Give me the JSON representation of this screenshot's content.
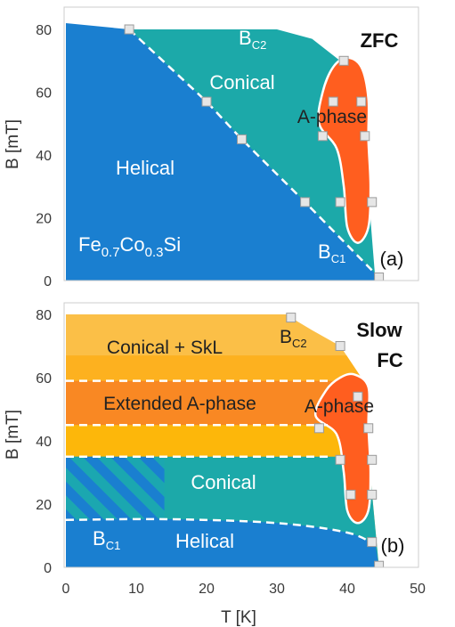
{
  "chart_data": [
    {
      "type": "phase-diagram",
      "panel_label": "(a)",
      "corner_label": "ZFC",
      "xlabel": "",
      "ylabel": "B [mT]",
      "xlim": [
        0,
        50
      ],
      "ylim": [
        0,
        80
      ],
      "y_ticks": [
        0,
        20,
        40,
        60,
        80
      ],
      "regions": [
        "Helical",
        "Conical",
        "A-phase"
      ],
      "compound_label": {
        "main": "Fe",
        "sub1": "0.7",
        "mid": "Co",
        "sub2": "0.3",
        "tail": "Si"
      },
      "boundaries": [
        {
          "name_main": "B",
          "name_sub": "C2",
          "points": [
            [
              30,
              80
            ],
            [
              35,
              77
            ],
            [
              39,
              70
            ],
            [
              42,
              56
            ],
            [
              44,
              0
            ]
          ]
        },
        {
          "name_main": "B",
          "name_sub": "C1",
          "points": [
            [
              9,
              80
            ],
            [
              20,
              57
            ],
            [
              25,
              45
            ],
            [
              34,
              25
            ],
            [
              44.5,
              1
            ]
          ]
        }
      ],
      "markers": [
        [
          9,
          80
        ],
        [
          20,
          57
        ],
        [
          25,
          45
        ],
        [
          34,
          25
        ],
        [
          44.5,
          1
        ],
        [
          39.5,
          70
        ],
        [
          38,
          57
        ],
        [
          42,
          57
        ],
        [
          36.5,
          46
        ],
        [
          42.5,
          46
        ],
        [
          39,
          25
        ],
        [
          43.5,
          25
        ]
      ],
      "a_phase_outline": [
        [
          40,
          71
        ],
        [
          42,
          68
        ],
        [
          43,
          58
        ],
        [
          43,
          45
        ],
        [
          43.3,
          30
        ],
        [
          43,
          17
        ],
        [
          41.5,
          12
        ],
        [
          40,
          17
        ],
        [
          39.5,
          30
        ],
        [
          38.5,
          42
        ],
        [
          36,
          50
        ],
        [
          36.5,
          60
        ],
        [
          38,
          68
        ]
      ]
    },
    {
      "type": "phase-diagram",
      "panel_label": "(b)",
      "corner_label_lines": [
        "Slow",
        "FC"
      ],
      "xlabel": "T [K]",
      "ylabel": "B [mT]",
      "xlim": [
        0,
        50
      ],
      "ylim": [
        0,
        80
      ],
      "x_ticks": [
        0,
        10,
        20,
        30,
        40,
        50
      ],
      "y_ticks": [
        0,
        20,
        40,
        60,
        80
      ],
      "regions": [
        "Conical + SkL",
        "Extended A-phase",
        "A-phase",
        "Conical",
        "Helical"
      ],
      "dashed_levels": [
        59,
        45,
        35
      ],
      "bc1_curve": [
        [
          0,
          15
        ],
        [
          15,
          15.2
        ],
        [
          30,
          14
        ],
        [
          40,
          11
        ],
        [
          44,
          7
        ]
      ],
      "boundaries": [
        {
          "name_main": "B",
          "name_sub": "C2",
          "points": [
            [
              32,
              79
            ],
            [
              35,
              75
            ],
            [
              39,
              70
            ],
            [
              42,
              60
            ],
            [
              44.5,
              0
            ]
          ]
        },
        {
          "name_main": "B",
          "name_sub": "C1",
          "points": [
            [
              0,
              15
            ],
            [
              30,
              14
            ],
            [
              44,
              7
            ]
          ]
        }
      ],
      "markers": [
        [
          32,
          79
        ],
        [
          39,
          70
        ],
        [
          41.5,
          54
        ],
        [
          36,
          44
        ],
        [
          43,
          44
        ],
        [
          39,
          34
        ],
        [
          43.5,
          34
        ],
        [
          40.5,
          23
        ],
        [
          43.5,
          23
        ],
        [
          43.5,
          8
        ],
        [
          44.5,
          0.5
        ]
      ],
      "hatch_region": {
        "x": [
          0,
          14
        ],
        "y": [
          15,
          35
        ]
      },
      "a_phase_outline": [
        [
          41,
          61
        ],
        [
          43,
          57
        ],
        [
          43,
          45
        ],
        [
          43.3,
          30
        ],
        [
          43,
          18
        ],
        [
          41.5,
          14
        ],
        [
          40,
          18
        ],
        [
          39.5,
          30
        ],
        [
          38.5,
          42
        ],
        [
          35.5,
          48
        ],
        [
          37,
          56
        ],
        [
          39,
          60
        ]
      ]
    }
  ]
}
